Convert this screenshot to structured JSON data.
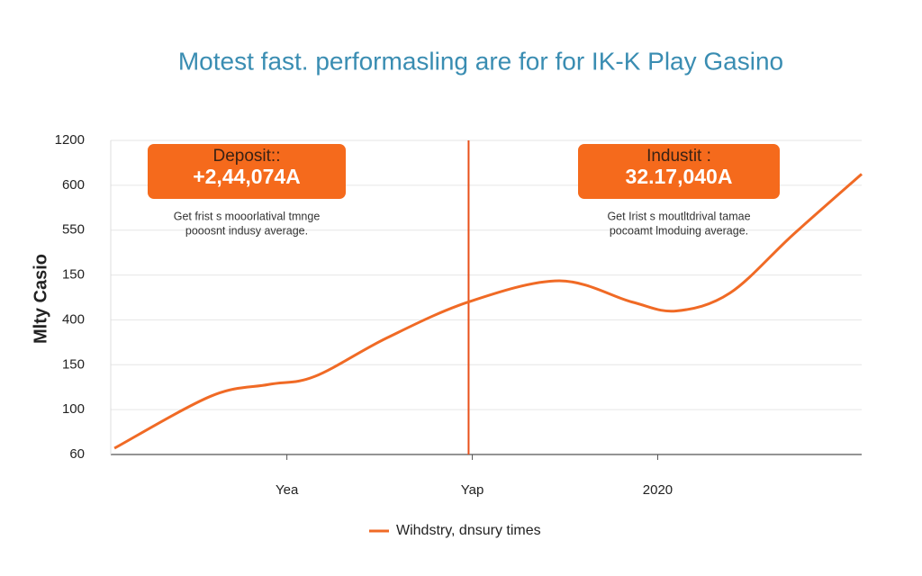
{
  "chart_data": {
    "type": "line",
    "title": "Motest fast. performasling are for for IK-K Play Gasino",
    "y_label": "Mlty Casio",
    "x": [
      0.07,
      0.59,
      0.9,
      1.15,
      1.54,
      1.98,
      2.47,
      2.86,
      3.1,
      3.39,
      3.73,
      4.1
    ],
    "series": [
      {
        "name": "Wihdstry, dnsury times",
        "color": "#f06a25",
        "values": [
          0.14,
          1.3,
          1.56,
          1.74,
          2.6,
          3.4,
          3.87,
          3.4,
          3.2,
          3.6,
          4.9,
          6.25
        ]
      }
    ],
    "xlim": [
      0.05,
      4.1
    ],
    "xticks": [
      {
        "value": 1,
        "label": "Yea"
      },
      {
        "value": 2,
        "label": "Yap"
      },
      {
        "value": 3,
        "label": "2020"
      }
    ],
    "ylim": [
      0,
      7
    ],
    "yticks": [
      {
        "value": 0,
        "label": "60"
      },
      {
        "value": 1,
        "label": "100"
      },
      {
        "value": 2,
        "label": "150"
      },
      {
        "value": 3,
        "label": "400"
      },
      {
        "value": 4,
        "label": "150"
      },
      {
        "value": 5,
        "label": "550"
      },
      {
        "value": 6,
        "label": "600"
      },
      {
        "value": 7,
        "label": "1200"
      }
    ],
    "grid": true,
    "vline": 1.98,
    "annotations": [
      {
        "title": "Deposit::",
        "value": "+2,44,074A",
        "text": [
          "Get frist s mooorlatival tmnge",
          "pooosnt indusy average."
        ]
      },
      {
        "title": "Industit :",
        "value": "32.17,040A",
        "text": [
          "Get Irist s moutltdrival tamae",
          "pocoamt lmoduing average."
        ]
      }
    ]
  }
}
